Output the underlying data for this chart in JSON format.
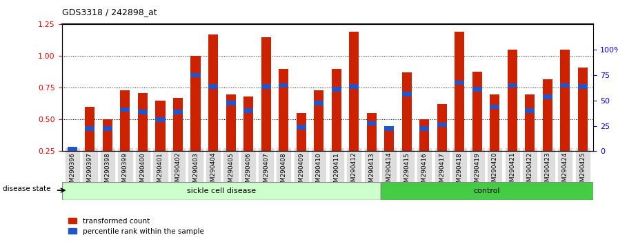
{
  "title": "GDS3318 / 242898_at",
  "samples": [
    "GSM290396",
    "GSM290397",
    "GSM290398",
    "GSM290399",
    "GSM290400",
    "GSM290401",
    "GSM290402",
    "GSM290403",
    "GSM290404",
    "GSM290405",
    "GSM290406",
    "GSM290407",
    "GSM290408",
    "GSM290409",
    "GSM290410",
    "GSM290411",
    "GSM290412",
    "GSM290413",
    "GSM290414",
    "GSM290415",
    "GSM290416",
    "GSM290417",
    "GSM290418",
    "GSM290419",
    "GSM290420",
    "GSM290421",
    "GSM290422",
    "GSM290423",
    "GSM290424",
    "GSM290425"
  ],
  "red_values": [
    0.27,
    0.6,
    0.5,
    0.73,
    0.71,
    0.65,
    0.67,
    1.0,
    1.17,
    0.7,
    0.68,
    1.15,
    0.9,
    0.55,
    0.73,
    0.9,
    1.19,
    0.55,
    0.44,
    0.87,
    0.5,
    0.62,
    1.19,
    0.88,
    0.7,
    1.05,
    0.7,
    0.82,
    1.05,
    0.91
  ],
  "blue_values": [
    0.27,
    0.43,
    0.43,
    0.58,
    0.56,
    0.5,
    0.56,
    0.85,
    0.76,
    0.63,
    0.57,
    0.76,
    0.77,
    0.44,
    0.63,
    0.74,
    0.76,
    0.47,
    0.43,
    0.7,
    0.43,
    0.46,
    0.79,
    0.74,
    0.6,
    0.77,
    0.57,
    0.68,
    0.77,
    0.76
  ],
  "sickle_count": 18,
  "control_count": 12,
  "bar_color": "#cc2200",
  "blue_color": "#2255cc",
  "sickle_color": "#ccffcc",
  "control_color": "#44cc44",
  "group_label_sickle": "sickle cell disease",
  "group_label_control": "control",
  "disease_state_label": "disease state",
  "legend_red": "transformed count",
  "legend_blue": "percentile rank within the sample",
  "ylim_left": [
    0.25,
    1.25
  ],
  "yticks_left": [
    0.25,
    0.5,
    0.75,
    1.0,
    1.25
  ],
  "yticks_right": [
    0,
    25,
    50,
    75,
    100
  ],
  "ylabel_right_labels": [
    "0",
    "25",
    "50",
    "75",
    "100%"
  ]
}
